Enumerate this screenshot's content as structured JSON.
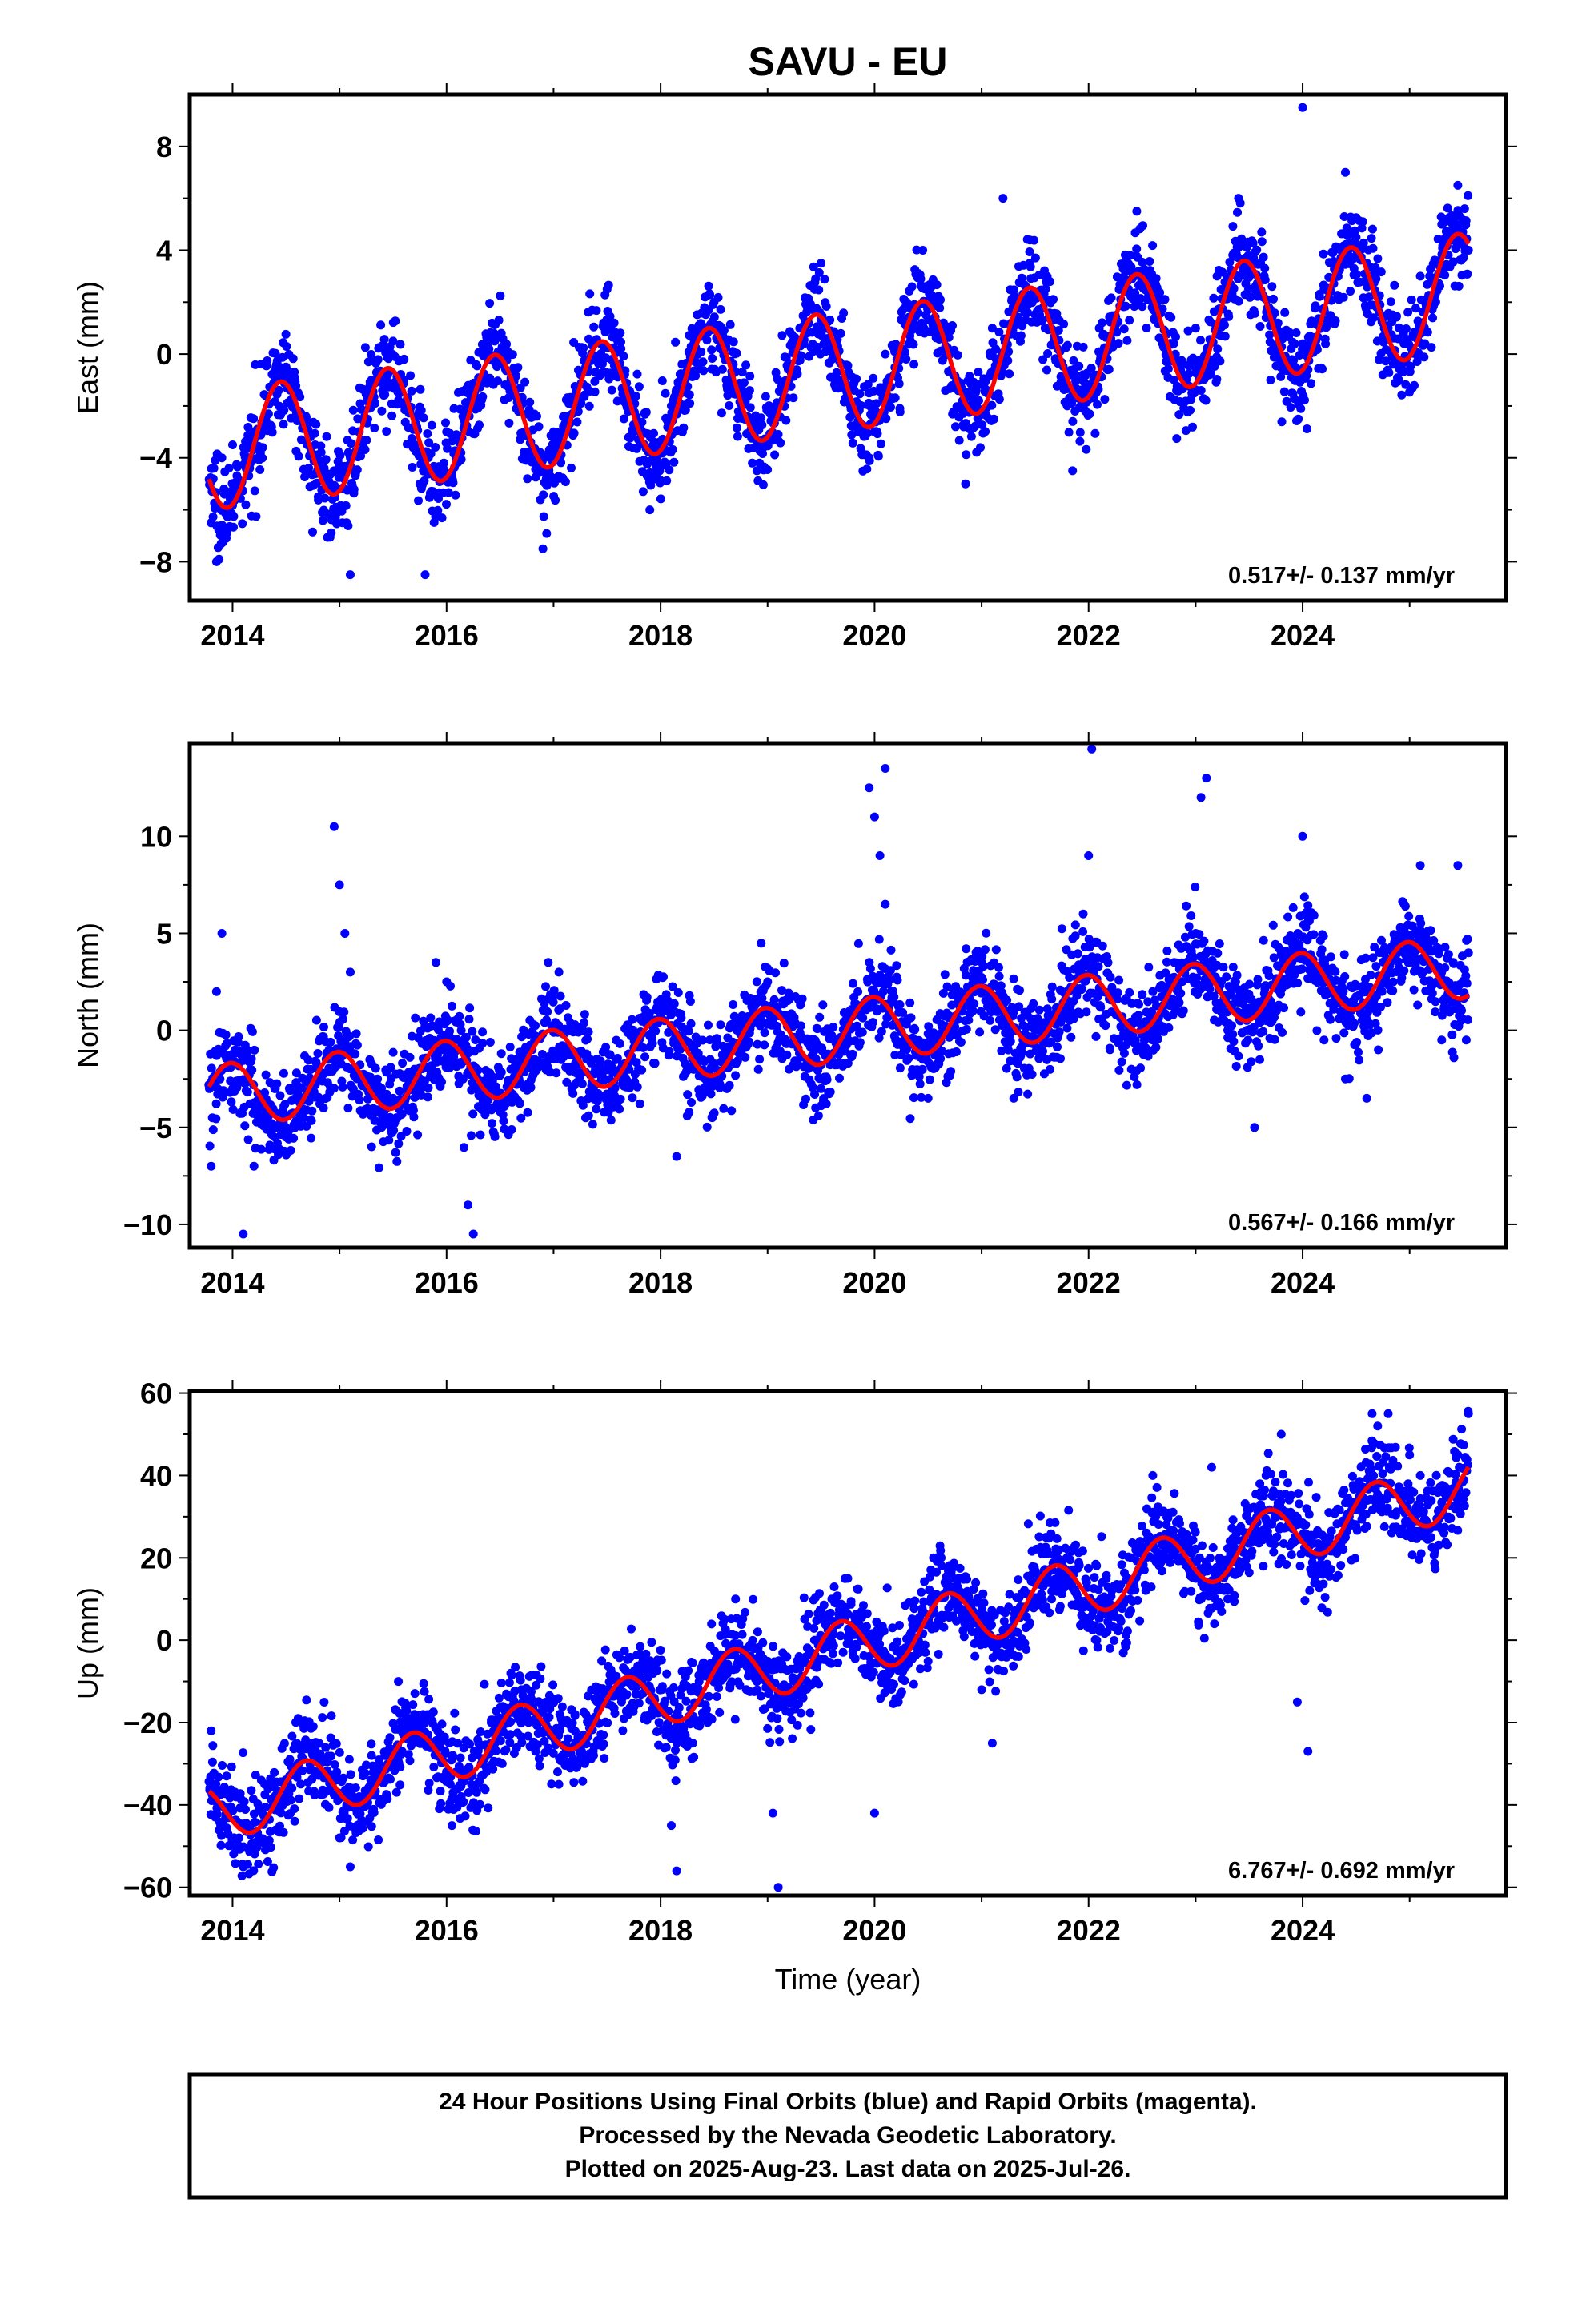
{
  "colors": {
    "points": "#0000ff",
    "fit": "#ff0000",
    "frame": "#000000",
    "rapid_points": "#ff00ff"
  },
  "footer": {
    "line1": "24 Hour Positions Using Final Orbits (blue) and Rapid Orbits (magenta).",
    "line2": "Processed by the Nevada Geodetic Laboratory.",
    "line3": "Plotted on 2025-Aug-23. Last data on 2025-Jul-26."
  },
  "chart_data": [
    {
      "type": "scatter",
      "title": "SAVU - EU",
      "xlabel": "",
      "ylabel": "East (mm)",
      "rate_text": "0.517+/- 0.137 mm/yr",
      "xlim": [
        2013.6,
        2025.9
      ],
      "ylim": [
        -9.5,
        10.0
      ],
      "xticks": [
        2014,
        2016,
        2018,
        2020,
        2022,
        2024
      ],
      "yticks": [
        -8,
        -4,
        0,
        4,
        8
      ],
      "grid": false,
      "series": [
        {
          "role": "points",
          "points": [
            [
              2013.8,
              -6.5
            ],
            [
              2013.85,
              -8.0
            ],
            [
              2013.9,
              -4.0
            ],
            [
              2014.0,
              -3.5
            ],
            [
              2014.2,
              -3.0
            ],
            [
              2014.4,
              -1.0
            ],
            [
              2014.5,
              -0.5
            ],
            [
              2014.7,
              -3.5
            ],
            [
              2014.8,
              -5.5
            ],
            [
              2014.95,
              -4.5
            ],
            [
              2015.1,
              -8.5
            ],
            [
              2015.3,
              -1.0
            ],
            [
              2015.5,
              0.5
            ],
            [
              2015.6,
              -1.0
            ],
            [
              2015.75,
              -5.0
            ],
            [
              2015.8,
              -8.5
            ],
            [
              2016.0,
              -3.0
            ],
            [
              2016.2,
              -1.5
            ],
            [
              2016.45,
              0.5
            ],
            [
              2016.6,
              -1.5
            ],
            [
              2016.8,
              -4.0
            ],
            [
              2016.9,
              -7.5
            ],
            [
              2017.0,
              -3.0
            ],
            [
              2017.3,
              -0.5
            ],
            [
              2017.5,
              2.5
            ],
            [
              2017.6,
              0.5
            ],
            [
              2017.85,
              -3.5
            ],
            [
              2017.9,
              -6.0
            ],
            [
              2018.1,
              -2.0
            ],
            [
              2018.3,
              0.0
            ],
            [
              2018.5,
              2.0
            ],
            [
              2018.6,
              0.5
            ],
            [
              2018.85,
              -3.0
            ],
            [
              2018.9,
              -4.5
            ],
            [
              2019.1,
              -1.0
            ],
            [
              2019.3,
              1.0
            ],
            [
              2019.5,
              3.5
            ],
            [
              2019.6,
              0.5
            ],
            [
              2019.85,
              -3.0
            ],
            [
              2019.95,
              -4.0
            ],
            [
              2020.1,
              0.0
            ],
            [
              2020.3,
              2.0
            ],
            [
              2020.45,
              4.0
            ],
            [
              2020.6,
              1.0
            ],
            [
              2020.8,
              -2.0
            ],
            [
              2020.85,
              -5.0
            ],
            [
              2021.1,
              1.0
            ],
            [
              2021.2,
              6.0
            ],
            [
              2021.45,
              3.5
            ],
            [
              2021.6,
              1.0
            ],
            [
              2021.8,
              -2.0
            ],
            [
              2021.85,
              -4.5
            ],
            [
              2022.1,
              1.0
            ],
            [
              2022.3,
              2.5
            ],
            [
              2022.45,
              5.5
            ],
            [
              2022.6,
              2.0
            ],
            [
              2022.8,
              -1.0
            ],
            [
              2023.0,
              1.0
            ],
            [
              2023.2,
              3.0
            ],
            [
              2023.4,
              6.0
            ],
            [
              2023.5,
              3.5
            ],
            [
              2023.7,
              -1.0
            ],
            [
              2023.9,
              -1.5
            ],
            [
              2024.0,
              9.5
            ],
            [
              2024.2,
              2.5
            ],
            [
              2024.4,
              7.0
            ],
            [
              2024.5,
              4.5
            ],
            [
              2024.7,
              0.5
            ],
            [
              2024.9,
              -1.0
            ],
            [
              2025.1,
              3.0
            ],
            [
              2025.3,
              5.0
            ],
            [
              2025.45,
              6.5
            ],
            [
              2025.55,
              4.0
            ]
          ]
        },
        {
          "role": "fit",
          "params": {
            "intercept": -0.7,
            "rate": 0.517,
            "ref": 2019.6,
            "annual_amp": 2.3,
            "annual_peak": 0.45
          }
        }
      ]
    },
    {
      "type": "scatter",
      "title": "",
      "xlabel": "",
      "ylabel": "North (mm)",
      "rate_text": "0.567+/- 0.166 mm/yr",
      "xlim": [
        2013.6,
        2025.9
      ],
      "ylim": [
        -11.2,
        14.8
      ],
      "xticks": [
        2014,
        2016,
        2018,
        2020,
        2022,
        2024
      ],
      "yticks": [
        -10,
        -5,
        0,
        5,
        10
      ],
      "grid": false,
      "series": [
        {
          "role": "points",
          "points": [
            [
              2013.8,
              -7.0
            ],
            [
              2013.85,
              2.0
            ],
            [
              2013.9,
              5.0
            ],
            [
              2014.0,
              -3.0
            ],
            [
              2014.1,
              -10.5
            ],
            [
              2014.2,
              -7.0
            ],
            [
              2014.4,
              -3.0
            ],
            [
              2014.5,
              -5.5
            ],
            [
              2014.7,
              -2.0
            ],
            [
              2014.85,
              -4.0
            ],
            [
              2014.95,
              10.5
            ],
            [
              2015.0,
              7.5
            ],
            [
              2015.05,
              5.0
            ],
            [
              2015.1,
              3.0
            ],
            [
              2015.3,
              -6.0
            ],
            [
              2015.5,
              -3.5
            ],
            [
              2015.7,
              -2.0
            ],
            [
              2015.9,
              3.5
            ],
            [
              2016.0,
              2.5
            ],
            [
              2016.2,
              -9.0
            ],
            [
              2016.25,
              -10.5
            ],
            [
              2016.4,
              -4.0
            ],
            [
              2016.6,
              -2.0
            ],
            [
              2016.8,
              -1.0
            ],
            [
              2016.95,
              3.5
            ],
            [
              2017.05,
              3.0
            ],
            [
              2017.3,
              -4.5
            ],
            [
              2017.5,
              -2.0
            ],
            [
              2017.8,
              -0.5
            ],
            [
              2018.0,
              1.5
            ],
            [
              2018.15,
              -6.5
            ],
            [
              2018.4,
              -3.0
            ],
            [
              2018.6,
              -1.5
            ],
            [
              2018.8,
              -0.5
            ],
            [
              2019.0,
              2.5
            ],
            [
              2019.2,
              -2.0
            ],
            [
              2019.5,
              -3.0
            ],
            [
              2019.7,
              -1.0
            ],
            [
              2019.95,
              12.5
            ],
            [
              2020.0,
              11.0
            ],
            [
              2020.05,
              9.0
            ],
            [
              2020.1,
              13.5
            ],
            [
              2020.1,
              6.5
            ],
            [
              2020.3,
              -1.0
            ],
            [
              2020.5,
              -3.5
            ],
            [
              2020.7,
              0.0
            ],
            [
              2021.0,
              3.5
            ],
            [
              2021.2,
              1.0
            ],
            [
              2021.3,
              -3.5
            ],
            [
              2021.5,
              0.0
            ],
            [
              2021.8,
              2.0
            ],
            [
              2021.95,
              6.0
            ],
            [
              2022.0,
              9.0
            ],
            [
              2022.03,
              14.5
            ],
            [
              2022.2,
              -1.0
            ],
            [
              2022.4,
              -2.0
            ],
            [
              2022.6,
              2.0
            ],
            [
              2022.8,
              3.5
            ],
            [
              2023.0,
              5.0
            ],
            [
              2023.05,
              12.0
            ],
            [
              2023.1,
              13.0
            ],
            [
              2023.3,
              0.0
            ],
            [
              2023.55,
              -5.0
            ],
            [
              2023.7,
              1.5
            ],
            [
              2023.9,
              3.5
            ],
            [
              2024.0,
              10.0
            ],
            [
              2024.05,
              6.0
            ],
            [
              2024.2,
              -0.5
            ],
            [
              2024.4,
              -2.5
            ],
            [
              2024.6,
              -3.5
            ],
            [
              2024.8,
              3.0
            ],
            [
              2024.95,
              6.5
            ],
            [
              2025.1,
              8.5
            ],
            [
              2025.3,
              -0.5
            ],
            [
              2025.45,
              8.5
            ],
            [
              2025.55,
              4.0
            ]
          ]
        },
        {
          "role": "fit",
          "params": {
            "intercept": -0.1,
            "rate": 0.567,
            "ref": 2019.6,
            "annual_amp": 1.6,
            "annual_peak": 0.98
          }
        }
      ]
    },
    {
      "type": "scatter",
      "title": "",
      "xlabel": "Time (year)",
      "ylabel": "Up (mm)",
      "rate_text": "6.767+/- 0.692 mm/yr",
      "xlim": [
        2013.6,
        2025.9
      ],
      "ylim": [
        -62.0,
        60.5
      ],
      "xticks": [
        2014,
        2016,
        2018,
        2020,
        2022,
        2024
      ],
      "yticks": [
        -60,
        -40,
        -20,
        0,
        20,
        40,
        60
      ],
      "grid": false,
      "series": [
        {
          "role": "points",
          "points": [
            [
              2013.8,
              -22.0
            ],
            [
              2013.9,
              -40.0
            ],
            [
              2014.1,
              -55.0
            ],
            [
              2014.3,
              -35.0
            ],
            [
              2014.6,
              -25.0
            ],
            [
              2014.8,
              -32.0
            ],
            [
              2015.0,
              -48.0
            ],
            [
              2015.1,
              -55.0
            ],
            [
              2015.3,
              -28.0
            ],
            [
              2015.55,
              -10.0
            ],
            [
              2015.7,
              -18.0
            ],
            [
              2015.9,
              -28.0
            ],
            [
              2016.05,
              -45.0
            ],
            [
              2016.3,
              -25.0
            ],
            [
              2016.6,
              -8.0
            ],
            [
              2016.7,
              -12.0
            ],
            [
              2016.9,
              -22.0
            ],
            [
              2017.05,
              -35.0
            ],
            [
              2017.2,
              -18.0
            ],
            [
              2017.45,
              -5.0
            ],
            [
              2017.7,
              -8.0
            ],
            [
              2017.9,
              -18.0
            ],
            [
              2018.1,
              -45.0
            ],
            [
              2018.15,
              -56.0
            ],
            [
              2018.3,
              -25.0
            ],
            [
              2018.6,
              5.0
            ],
            [
              2018.7,
              10.0
            ],
            [
              2018.9,
              -10.0
            ],
            [
              2019.05,
              -42.0
            ],
            [
              2019.1,
              -60.0
            ],
            [
              2019.3,
              -10.0
            ],
            [
              2019.6,
              10.0
            ],
            [
              2019.75,
              15.0
            ],
            [
              2019.95,
              0.0
            ],
            [
              2020.0,
              -42.0
            ],
            [
              2020.3,
              -5.0
            ],
            [
              2020.55,
              20.0
            ],
            [
              2020.75,
              10.0
            ],
            [
              2021.0,
              -12.0
            ],
            [
              2021.1,
              -25.0
            ],
            [
              2021.3,
              5.0
            ],
            [
              2021.6,
              25.0
            ],
            [
              2021.8,
              15.0
            ],
            [
              2022.0,
              5.0
            ],
            [
              2022.2,
              -2.0
            ],
            [
              2022.4,
              20.0
            ],
            [
              2022.6,
              40.0
            ],
            [
              2022.8,
              25.0
            ],
            [
              2023.0,
              15.0
            ],
            [
              2023.15,
              42.0
            ],
            [
              2023.3,
              10.0
            ],
            [
              2023.6,
              38.0
            ],
            [
              2023.8,
              50.0
            ],
            [
              2023.95,
              -15.0
            ],
            [
              2024.05,
              -27.0
            ],
            [
              2024.2,
              18.0
            ],
            [
              2024.4,
              25.0
            ],
            [
              2024.65,
              55.0
            ],
            [
              2024.8,
              55.0
            ],
            [
              2025.0,
              45.0
            ],
            [
              2025.1,
              40.0
            ],
            [
              2025.2,
              25.0
            ],
            [
              2025.45,
              45.0
            ],
            [
              2025.55,
              55.0
            ]
          ]
        },
        {
          "role": "fit",
          "params": {
            "intercept": -3.0,
            "rate": 6.767,
            "ref": 2019.6,
            "annual_amp": 7.0,
            "annual_peak": 0.68
          }
        }
      ]
    }
  ]
}
